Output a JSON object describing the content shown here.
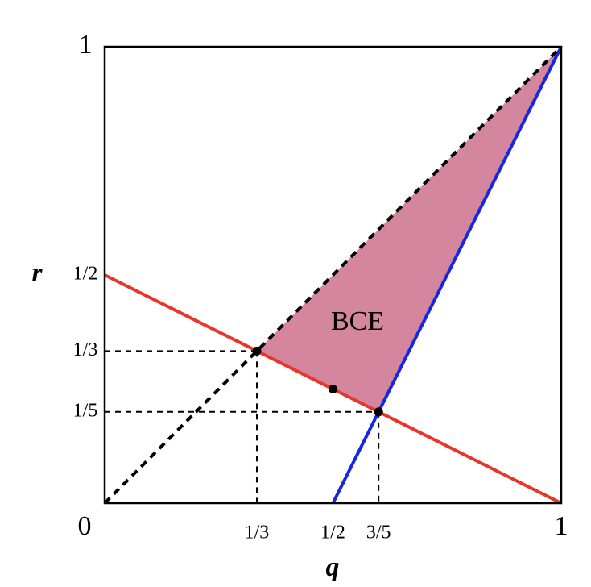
{
  "chart_data": {
    "type": "line",
    "xlabel": "q",
    "ylabel": "r",
    "xlim": [
      0,
      1
    ],
    "ylim": [
      0,
      1
    ],
    "xticks": [
      0,
      {
        "value": 0.3333,
        "label": "1/3"
      },
      {
        "value": 0.5,
        "label": "1/2"
      },
      {
        "value": 0.6,
        "label": "3/5"
      },
      1
    ],
    "yticks": [
      {
        "value": 0.2,
        "label": "1/5"
      },
      {
        "value": 0.3333,
        "label": "1/3"
      },
      {
        "value": 0.5,
        "label": "1/2"
      },
      1
    ],
    "series": [
      {
        "color": "#e8362a",
        "x": [
          0,
          1
        ],
        "values": [
          0.5,
          0
        ]
      },
      {
        "color": "#1426e6",
        "x": [
          0.5,
          1
        ],
        "values": [
          0,
          1
        ]
      },
      {
        "color": "#000000",
        "dashed": true,
        "x": [
          0,
          1
        ],
        "values": [
          0,
          1
        ]
      }
    ],
    "region": {
      "color": "#d4869f",
      "x": [
        0.3333,
        1,
        0.6
      ],
      "values": [
        0.3333,
        1,
        0.2
      ]
    },
    "points": {
      "color": "#000000",
      "x": [
        0.3333,
        0.5,
        0.6
      ],
      "values": [
        0.3333,
        0.25,
        0.2
      ]
    },
    "annotation": "BCE"
  }
}
